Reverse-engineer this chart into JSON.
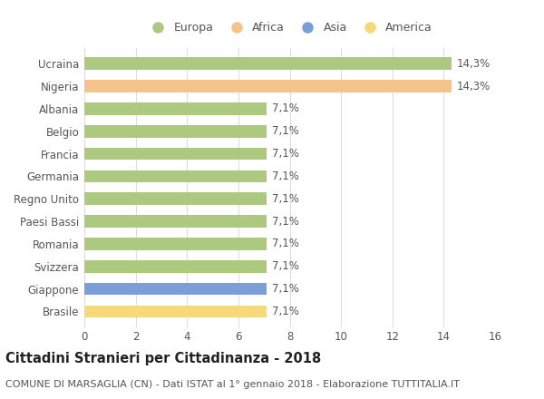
{
  "countries": [
    "Ucraina",
    "Nigeria",
    "Albania",
    "Belgio",
    "Francia",
    "Germania",
    "Regno Unito",
    "Paesi Bassi",
    "Romania",
    "Svizzera",
    "Giappone",
    "Brasile"
  ],
  "values": [
    14.3,
    14.3,
    7.1,
    7.1,
    7.1,
    7.1,
    7.1,
    7.1,
    7.1,
    7.1,
    7.1,
    7.1
  ],
  "labels": [
    "14,3%",
    "14,3%",
    "7,1%",
    "7,1%",
    "7,1%",
    "7,1%",
    "7,1%",
    "7,1%",
    "7,1%",
    "7,1%",
    "7,1%",
    "7,1%"
  ],
  "bar_colors": [
    "#adc97f",
    "#f5c48a",
    "#adc97f",
    "#adc97f",
    "#adc97f",
    "#adc97f",
    "#adc97f",
    "#adc97f",
    "#adc97f",
    "#adc97f",
    "#7b9fd4",
    "#f5d97a"
  ],
  "legend_labels": [
    "Europa",
    "Africa",
    "Asia",
    "America"
  ],
  "legend_colors": [
    "#adc97f",
    "#f5c48a",
    "#7b9fd4",
    "#f5d97a"
  ],
  "xlim": [
    0,
    16
  ],
  "xticks": [
    0,
    2,
    4,
    6,
    8,
    10,
    12,
    14,
    16
  ],
  "title": "Cittadini Stranieri per Cittadinanza - 2018",
  "subtitle": "COMUNE DI MARSAGLIA (CN) - Dati ISTAT al 1° gennaio 2018 - Elaborazione TUTTITALIA.IT",
  "background_color": "#ffffff",
  "grid_color": "#dddddd",
  "bar_height": 0.55,
  "label_fontsize": 8.5,
  "title_fontsize": 10.5,
  "subtitle_fontsize": 8,
  "tick_fontsize": 8.5,
  "legend_fontsize": 9
}
